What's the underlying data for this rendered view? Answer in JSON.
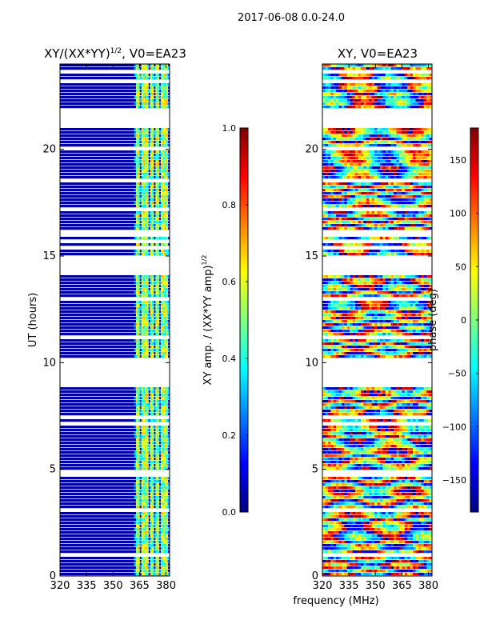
{
  "suptitle": "2017-06-08 0.0-24.0",
  "xlabel_shared": "frequency (MHz)",
  "chart_data": [
    {
      "type": "heatmap",
      "title_prefix": "XY/(XX*YY)",
      "title_exp": "1/2",
      "title_suffix": ", V0=EA23",
      "ylabel": "UT (hours)",
      "xlim": [
        320,
        382
      ],
      "ylim": [
        0,
        24
      ],
      "xticks": [
        320,
        335,
        350,
        365,
        380
      ],
      "yticks": [
        0,
        5,
        10,
        15,
        20
      ],
      "bright_channels_mhz": [
        364,
        367,
        369,
        372,
        375,
        378,
        380
      ],
      "gaps_hours": [
        [
          8.98,
          10.25
        ],
        [
          14.15,
          15.0
        ],
        [
          15.9,
          16.15
        ],
        [
          21.0,
          21.95
        ]
      ],
      "colorbar": {
        "label_main": "XY amp. / (XX*YY amp)",
        "label_exp": "1/2",
        "vmin": 0.0,
        "vmax": 1.0,
        "ticks": [
          "0.0",
          "0.2",
          "0.4",
          "0.6",
          "0.8",
          "1.0"
        ],
        "tick_values": [
          0.0,
          0.2,
          0.4,
          0.6,
          0.8,
          1.0
        ],
        "colormap": "jet"
      }
    },
    {
      "type": "heatmap",
      "title": "XY, V0=EA23",
      "xlim": [
        320,
        382
      ],
      "ylim": [
        0,
        24
      ],
      "xticks": [
        320,
        335,
        350,
        365,
        380
      ],
      "yticks": [
        0,
        5,
        10,
        15,
        20
      ],
      "gaps_hours": [
        [
          8.98,
          10.25
        ],
        [
          14.15,
          15.0
        ],
        [
          15.9,
          16.15
        ],
        [
          21.0,
          21.95
        ]
      ],
      "colorbar": {
        "label": "phase (deg)",
        "vmin": -180,
        "vmax": 180,
        "ticks": [
          "−150",
          "−100",
          "−50",
          "0",
          "50",
          "100",
          "150"
        ],
        "tick_values": [
          -150,
          -100,
          -50,
          0,
          50,
          100,
          150
        ],
        "colormap": "jet"
      }
    }
  ]
}
